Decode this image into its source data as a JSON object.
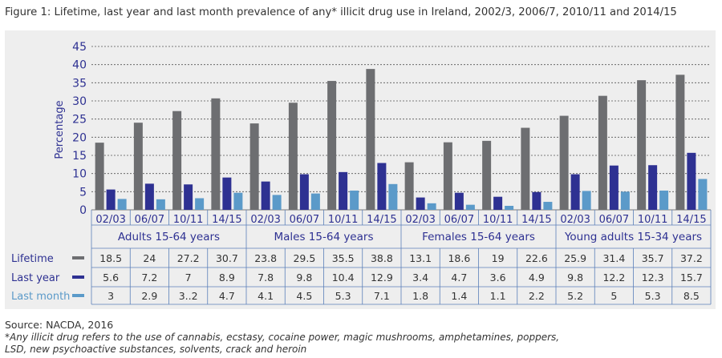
{
  "figure": {
    "title": "Figure 1: Lifetime, last year and last month prevalence of any* illicit drug use in Ireland, 2002/3, 2006/7, 2010/11 and 2014/15",
    "source": "Source: NACDA, 2016",
    "footnote_line1": "*Any illicit drug refers to the use of cannabis, ecstasy, cocaine power, magic mushrooms, amphetamines, poppers,",
    "footnote_line2": "LSD, new psychoactive substances, solvents, crack and heroin"
  },
  "chart_data": {
    "type": "bar",
    "ylabel": "Percentage",
    "ylim": [
      0,
      45
    ],
    "yticks": [
      0,
      5,
      10,
      15,
      20,
      25,
      30,
      35,
      40,
      45
    ],
    "grid": true,
    "groups": [
      "Adults 15-64 years",
      "Males 15-64 years",
      "Females 15-64 years",
      "Young adults 15-34 years"
    ],
    "periods": [
      "02/03",
      "06/07",
      "10/11",
      "14/15"
    ],
    "series": [
      {
        "name": "Lifetime",
        "color": "#6d6e71",
        "values": [
          18.5,
          24,
          27.2,
          30.7,
          23.8,
          29.5,
          35.5,
          38.8,
          13.1,
          18.6,
          19,
          22.6,
          25.9,
          31.4,
          35.7,
          37.2
        ],
        "labels": [
          "18.5",
          "24",
          "27.2",
          "30.7",
          "23.8",
          "29.5",
          "35.5",
          "38.8",
          "13.1",
          "18.6",
          "19",
          "22.6",
          "25.9",
          "31.4",
          "35.7",
          "37.2"
        ]
      },
      {
        "name": "Last year",
        "color": "#2e3192",
        "values": [
          5.6,
          7.2,
          7,
          8.9,
          7.8,
          9.8,
          10.4,
          12.9,
          3.4,
          4.7,
          3.6,
          4.9,
          9.8,
          12.2,
          12.3,
          15.7
        ],
        "labels": [
          "5.6",
          "7.2",
          "7",
          "8.9",
          "7.8",
          "9.8",
          "10.4",
          "12.9",
          "3.4",
          "4.7",
          "3.6",
          "4.9",
          "9.8",
          "12.2",
          "12.3",
          "15.7"
        ]
      },
      {
        "name": "Last month",
        "color": "#5b9ac9",
        "values": [
          3,
          2.9,
          3.2,
          4.7,
          4.1,
          4.5,
          5.3,
          7.1,
          1.8,
          1.4,
          1.1,
          2.2,
          5.2,
          5,
          5.3,
          8.5
        ],
        "labels": [
          "3",
          "2.9",
          "3..2",
          "4.7",
          "4.1",
          "4.5",
          "5.3",
          "7.1",
          "1.8",
          "1.4",
          "1.1",
          "2.2",
          "5.2",
          "5",
          "5.3",
          "8.5"
        ]
      }
    ]
  }
}
